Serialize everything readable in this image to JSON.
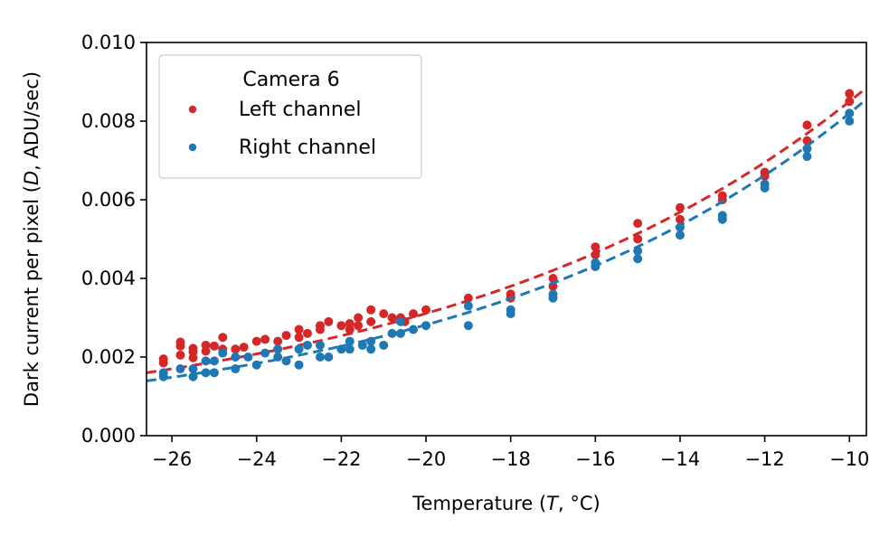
{
  "chart_data": {
    "type": "scatter",
    "xlabel_parts": [
      "Temperature (",
      "T",
      ", °C)"
    ],
    "ylabel_parts": [
      "Dark current per pixel (",
      "D",
      ", ADU/sec)"
    ],
    "xlim": [
      -26.6,
      -9.6
    ],
    "ylim": [
      0.0,
      0.01
    ],
    "x_ticks": [
      -26,
      -24,
      -22,
      -20,
      -18,
      -16,
      -14,
      -12,
      -10
    ],
    "x_tick_labels": [
      "−26",
      "−24",
      "−22",
      "−20",
      "−18",
      "−16",
      "−14",
      "−12",
      "−10"
    ],
    "y_ticks": [
      0.0,
      0.002,
      0.004,
      0.006,
      0.008,
      0.01
    ],
    "y_tick_labels": [
      "0.000",
      "0.002",
      "0.004",
      "0.006",
      "0.008",
      "0.010"
    ],
    "grid": false,
    "legend": {
      "title": "Camera 6",
      "placement": "top-left"
    },
    "series": [
      {
        "name": "Left channel",
        "color": "#d62728",
        "fit": {
          "a": 0.0085,
          "b": 0.1006,
          "x0": -10
        },
        "points": [
          [
            -26.2,
            0.00195
          ],
          [
            -26.2,
            0.00185
          ],
          [
            -25.8,
            0.00238
          ],
          [
            -25.8,
            0.00228
          ],
          [
            -25.8,
            0.00205
          ],
          [
            -25.5,
            0.00222
          ],
          [
            -25.5,
            0.00213
          ],
          [
            -25.5,
            0.00198
          ],
          [
            -25.2,
            0.0023
          ],
          [
            -25.2,
            0.00215
          ],
          [
            -25.0,
            0.00228
          ],
          [
            -24.8,
            0.0025
          ],
          [
            -24.8,
            0.0022
          ],
          [
            -24.5,
            0.0022
          ],
          [
            -24.3,
            0.00225
          ],
          [
            -24.0,
            0.0024
          ],
          [
            -23.8,
            0.00245
          ],
          [
            -23.5,
            0.0024
          ],
          [
            -23.3,
            0.00255
          ],
          [
            -23.0,
            0.0027
          ],
          [
            -23.0,
            0.0025
          ],
          [
            -22.8,
            0.0026
          ],
          [
            -22.5,
            0.0028
          ],
          [
            -22.5,
            0.0027
          ],
          [
            -22.3,
            0.0029
          ],
          [
            -22.0,
            0.0028
          ],
          [
            -21.8,
            0.00285
          ],
          [
            -21.8,
            0.0027
          ],
          [
            -21.6,
            0.003
          ],
          [
            -21.6,
            0.0028
          ],
          [
            -21.3,
            0.0032
          ],
          [
            -21.3,
            0.0029
          ],
          [
            -21.0,
            0.0031
          ],
          [
            -20.8,
            0.003
          ],
          [
            -20.6,
            0.003
          ],
          [
            -20.5,
            0.0029
          ],
          [
            -20.3,
            0.0031
          ],
          [
            -20.0,
            0.0032
          ],
          [
            -19.0,
            0.0035
          ],
          [
            -18.0,
            0.0036
          ],
          [
            -18.0,
            0.0035
          ],
          [
            -17.0,
            0.004
          ],
          [
            -17.0,
            0.0038
          ],
          [
            -16.0,
            0.0048
          ],
          [
            -16.0,
            0.0046
          ],
          [
            -15.0,
            0.0054
          ],
          [
            -15.0,
            0.005
          ],
          [
            -14.0,
            0.0058
          ],
          [
            -14.0,
            0.0055
          ],
          [
            -13.0,
            0.0061
          ],
          [
            -13.0,
            0.006
          ],
          [
            -12.0,
            0.0067
          ],
          [
            -12.0,
            0.0066
          ],
          [
            -11.0,
            0.0079
          ],
          [
            -11.0,
            0.0075
          ],
          [
            -10.0,
            0.0087
          ],
          [
            -10.0,
            0.0085
          ]
        ]
      },
      {
        "name": "Right channel",
        "color": "#1f77b4",
        "fit": {
          "a": 0.0082,
          "b": 0.1068,
          "x0": -10
        },
        "points": [
          [
            -26.2,
            0.0015
          ],
          [
            -26.2,
            0.0016
          ],
          [
            -25.8,
            0.0017
          ],
          [
            -25.5,
            0.0015
          ],
          [
            -25.5,
            0.0017
          ],
          [
            -25.2,
            0.0019
          ],
          [
            -25.2,
            0.0016
          ],
          [
            -25.0,
            0.0016
          ],
          [
            -25.0,
            0.0019
          ],
          [
            -24.8,
            0.0021
          ],
          [
            -24.5,
            0.0017
          ],
          [
            -24.5,
            0.002
          ],
          [
            -24.2,
            0.002
          ],
          [
            -24.0,
            0.0018
          ],
          [
            -23.8,
            0.0021
          ],
          [
            -23.5,
            0.0022
          ],
          [
            -23.5,
            0.002
          ],
          [
            -23.3,
            0.0019
          ],
          [
            -23.0,
            0.0022
          ],
          [
            -23.0,
            0.0018
          ],
          [
            -22.8,
            0.0023
          ],
          [
            -22.5,
            0.0023
          ],
          [
            -22.5,
            0.002
          ],
          [
            -22.3,
            0.002
          ],
          [
            -22.0,
            0.0022
          ],
          [
            -21.8,
            0.0024
          ],
          [
            -21.8,
            0.0022
          ],
          [
            -21.5,
            0.0023
          ],
          [
            -21.3,
            0.0024
          ],
          [
            -21.3,
            0.0022
          ],
          [
            -21.0,
            0.0023
          ],
          [
            -20.8,
            0.0026
          ],
          [
            -20.6,
            0.0029
          ],
          [
            -20.6,
            0.0026
          ],
          [
            -20.3,
            0.0027
          ],
          [
            -20.0,
            0.0028
          ],
          [
            -19.0,
            0.0028
          ],
          [
            -19.0,
            0.0033
          ],
          [
            -18.0,
            0.0031
          ],
          [
            -18.0,
            0.0032
          ],
          [
            -17.0,
            0.0035
          ],
          [
            -17.0,
            0.0036
          ],
          [
            -16.0,
            0.0043
          ],
          [
            -16.0,
            0.0044
          ],
          [
            -15.0,
            0.0045
          ],
          [
            -15.0,
            0.0047
          ],
          [
            -14.0,
            0.0051
          ],
          [
            -14.0,
            0.0053
          ],
          [
            -13.0,
            0.0055
          ],
          [
            -13.0,
            0.0056
          ],
          [
            -12.0,
            0.0063
          ],
          [
            -12.0,
            0.0064
          ],
          [
            -11.0,
            0.0071
          ],
          [
            -11.0,
            0.0073
          ],
          [
            -10.0,
            0.008
          ],
          [
            -10.0,
            0.0082
          ]
        ]
      }
    ]
  }
}
